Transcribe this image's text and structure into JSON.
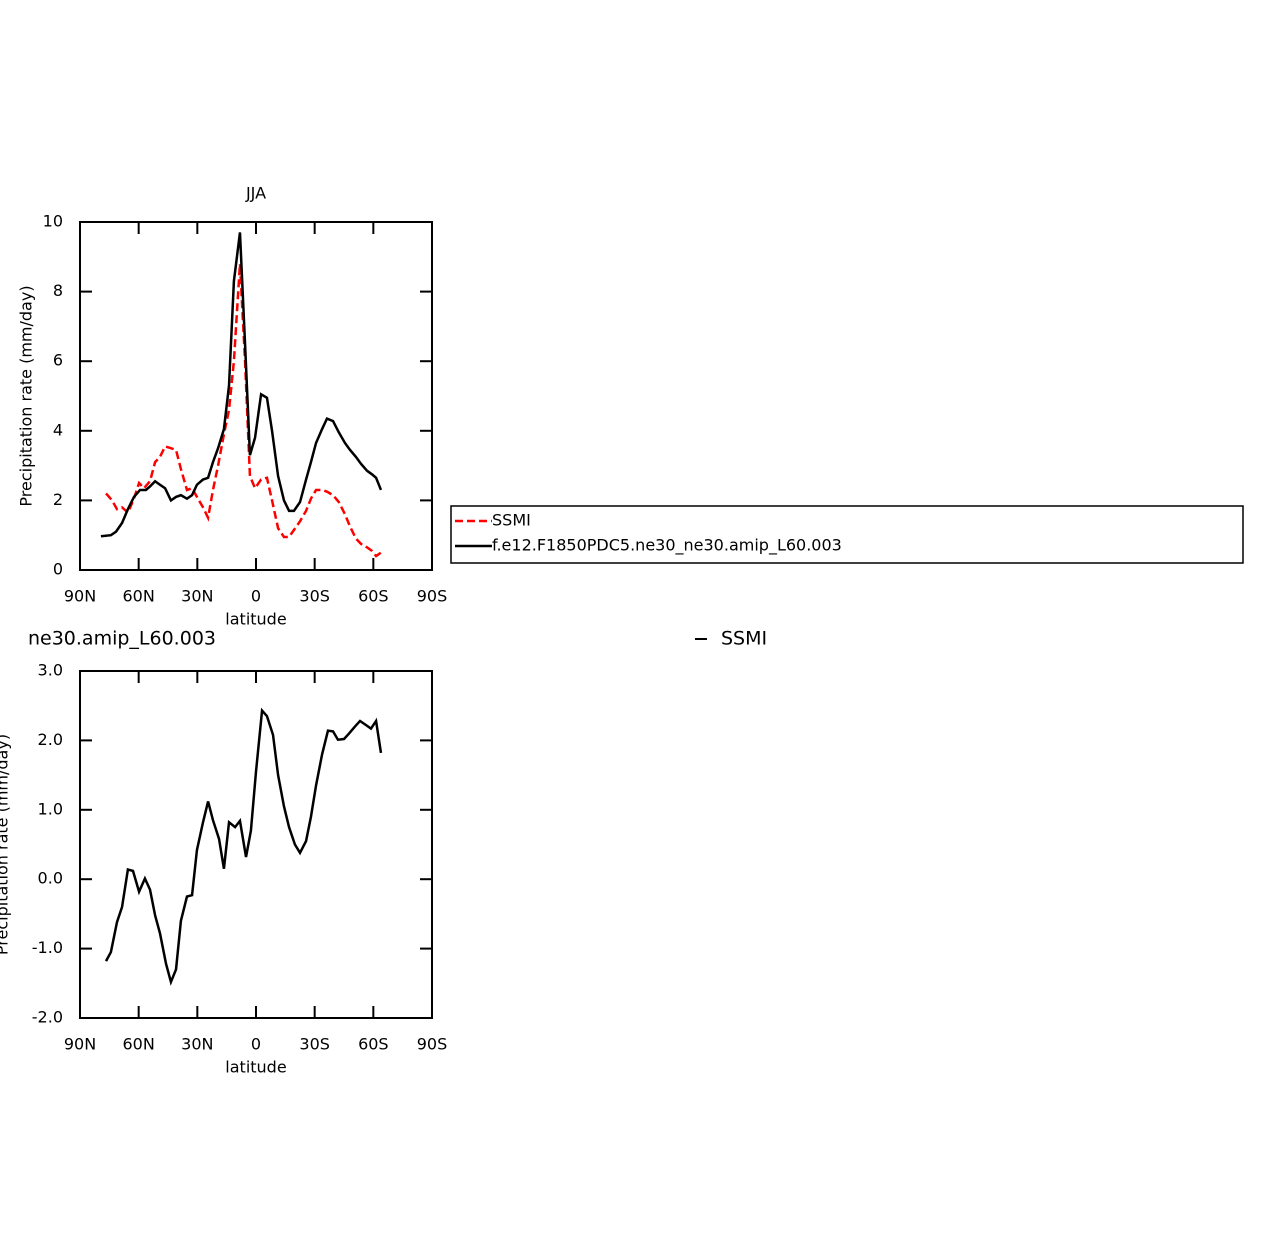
{
  "chart_data": [
    {
      "type": "line",
      "title": "JJA",
      "x_label": "latitude",
      "y_label": "Precipitation rate (mm/day)",
      "xlim": [
        90,
        -90
      ],
      "xticks": [
        {
          "value": 90,
          "label": "90N"
        },
        {
          "value": 60,
          "label": "60N"
        },
        {
          "value": 30,
          "label": "30N"
        },
        0,
        {
          "value": -30,
          "label": "30S"
        },
        {
          "value": -60,
          "label": "60S"
        },
        {
          "value": -90,
          "label": "90S"
        }
      ],
      "ylim": [
        0,
        10
      ],
      "yticks": [
        0,
        2,
        4,
        6,
        8,
        10
      ],
      "legend": "right",
      "series": [
        {
          "name": "SSMI",
          "color": "#ff0000",
          "dash": true,
          "x": [
            76.7,
            73.6,
            71.1,
            68.5,
            65.5,
            62.4,
            59.8,
            57.3,
            54.2,
            51.6,
            49.1,
            46.5,
            43.5,
            40.9,
            38.4,
            35.3,
            32.7,
            30.2,
            27.1,
            24.5,
            22.0,
            19.4,
            16.4,
            13.8,
            11.3,
            8.2,
            5.6,
            3.1,
            0.5,
            -2.6,
            -5.6,
            -8.2,
            -11.3,
            -14.3,
            -16.9,
            -19.4,
            -22.5,
            -25.6,
            -28.1,
            -30.7,
            -33.8,
            -36.3,
            -39.4,
            -42.4,
            -45.5,
            -48.1,
            -51.1,
            -53.7,
            -56.8,
            -59.3,
            -61.4,
            -63.9
          ],
          "values": [
            2.2,
            2.0,
            1.75,
            1.8,
            1.65,
            2.05,
            2.5,
            2.35,
            2.55,
            3.1,
            3.25,
            3.55,
            3.5,
            3.45,
            2.9,
            2.3,
            2.35,
            2.1,
            1.8,
            1.5,
            2.3,
            3.0,
            3.9,
            4.6,
            6.0,
            8.8,
            6.0,
            2.7,
            2.35,
            2.6,
            2.65,
            2.0,
            1.2,
            0.95,
            0.95,
            1.15,
            1.4,
            1.7,
            2.05,
            2.3,
            2.3,
            2.25,
            2.15,
            1.95,
            1.6,
            1.25,
            0.9,
            0.75,
            0.65,
            0.55,
            0.4,
            0.5
          ]
        },
        {
          "name": "f.e12.F1850PDC5.ne30_ne30.amip_L60.003",
          "color": "#000000",
          "dash": false,
          "x": [
            79.3,
            74.2,
            71.6,
            68.5,
            65.5,
            62.4,
            59.3,
            56.3,
            54.2,
            51.6,
            49.1,
            46.5,
            43.5,
            40.9,
            38.4,
            35.3,
            32.7,
            30.2,
            27.1,
            24.5,
            22.0,
            19.4,
            16.4,
            13.8,
            11.3,
            8.2,
            5.6,
            3.1,
            0.5,
            -2.6,
            -5.6,
            -8.2,
            -11.3,
            -14.3,
            -16.9,
            -19.4,
            -22.5,
            -25.6,
            -28.1,
            -30.7,
            -33.8,
            -36.3,
            -39.4,
            -42.4,
            -45.5,
            -48.1,
            -51.1,
            -53.7,
            -56.8,
            -59.3,
            -61.4,
            -63.9
          ],
          "values": [
            0.97,
            1.0,
            1.1,
            1.35,
            1.75,
            2.1,
            2.3,
            2.3,
            2.4,
            2.55,
            2.45,
            2.35,
            2.0,
            2.1,
            2.15,
            2.05,
            2.15,
            2.45,
            2.6,
            2.65,
            3.1,
            3.5,
            4.05,
            5.3,
            8.3,
            9.7,
            6.5,
            3.3,
            3.8,
            5.05,
            4.95,
            4.0,
            2.7,
            2.0,
            1.7,
            1.7,
            1.95,
            2.6,
            3.1,
            3.65,
            4.05,
            4.35,
            4.28,
            3.95,
            3.65,
            3.45,
            3.25,
            3.05,
            2.85,
            2.75,
            2.65,
            2.3
          ]
        }
      ]
    },
    {
      "type": "line",
      "title": "ne30.amip_L60.003",
      "right_title": "SSMI",
      "x_label": "latitude",
      "y_label": "Precipitation rate (mm/day)",
      "xlim": [
        90,
        -90
      ],
      "xticks": [
        {
          "value": 90,
          "label": "90N"
        },
        {
          "value": 60,
          "label": "60N"
        },
        {
          "value": 30,
          "label": "30N"
        },
        0,
        {
          "value": -30,
          "label": "30S"
        },
        {
          "value": -60,
          "label": "60S"
        },
        {
          "value": -90,
          "label": "90S"
        }
      ],
      "ylim": [
        -2,
        3
      ],
      "yticks": [
        {
          "value": 3,
          "label": "3.0"
        },
        {
          "value": 2,
          "label": "2.0"
        },
        {
          "value": 1,
          "label": "1.0"
        },
        {
          "value": 0,
          "label": "0.0"
        },
        {
          "value": -1,
          "label": "-1.0"
        },
        {
          "value": -2,
          "label": "-2.0"
        }
      ],
      "series": [
        {
          "color": "#000000",
          "dash": false,
          "x": [
            76.7,
            74.2,
            71.1,
            68.5,
            65.5,
            62.9,
            59.8,
            56.8,
            54.2,
            51.6,
            49.1,
            46.0,
            43.5,
            40.9,
            38.4,
            35.3,
            32.7,
            30.2,
            27.1,
            24.5,
            22.0,
            18.9,
            16.4,
            13.8,
            10.7,
            8.2,
            5.1,
            2.6,
            0,
            -3.1,
            -5.6,
            -8.7,
            -11.3,
            -14.3,
            -16.9,
            -19.9,
            -22.5,
            -25.6,
            -28.1,
            -30.7,
            -33.8,
            -36.8,
            -39.4,
            -41.9,
            -45.0,
            -47.6,
            -50.6,
            -53.2,
            -56.3,
            -58.8,
            -61.4,
            -63.9
          ],
          "values": [
            -1.18,
            -1.05,
            -0.62,
            -0.4,
            0.14,
            0.12,
            -0.18,
            0.01,
            -0.15,
            -0.52,
            -0.78,
            -1.22,
            -1.48,
            -1.3,
            -0.6,
            -0.25,
            -0.23,
            0.42,
            0.82,
            1.12,
            0.85,
            0.58,
            0.15,
            0.82,
            0.75,
            0.84,
            0.32,
            0.7,
            1.55,
            2.43,
            2.35,
            2.08,
            1.5,
            1.05,
            0.75,
            0.5,
            0.38,
            0.55,
            0.9,
            1.35,
            1.8,
            2.14,
            2.13,
            2.01,
            2.02,
            2.1,
            2.2,
            2.28,
            2.22,
            2.17,
            2.28,
            1.82
          ]
        }
      ]
    }
  ]
}
